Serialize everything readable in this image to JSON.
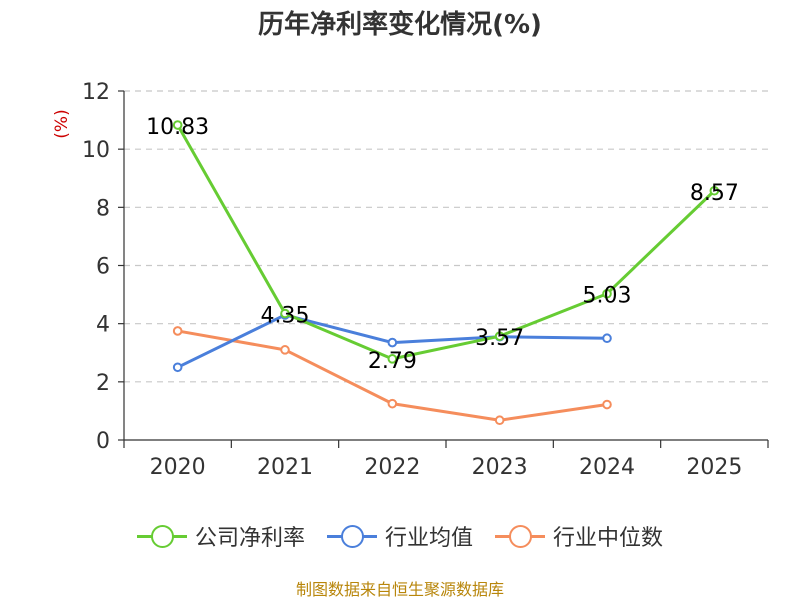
{
  "chart_data": {
    "type": "line",
    "title": "历年净利率变化情况(%)",
    "ylabel": "(%)",
    "xlabel": "",
    "ylim": [
      0,
      12
    ],
    "yticks": [
      0,
      2,
      4,
      6,
      8,
      10,
      12
    ],
    "grid": true,
    "legend_position": "bottom",
    "categories": [
      "2020",
      "2021",
      "2022",
      "2023",
      "2024",
      "2025"
    ],
    "series": [
      {
        "name": "公司净利率",
        "color": "#66cc33",
        "values": [
          10.83,
          4.35,
          2.79,
          3.57,
          5.03,
          8.57
        ],
        "labels": [
          "10.83",
          "4.35",
          "2.79",
          "3.57",
          "5.03",
          "8.57"
        ]
      },
      {
        "name": "行业均值",
        "color": "#4a7fdb",
        "values": [
          2.5,
          4.3,
          3.35,
          3.55,
          3.5,
          null
        ],
        "labels": []
      },
      {
        "name": "行业中位数",
        "color": "#f58d5c",
        "values": [
          3.75,
          3.1,
          1.25,
          0.68,
          1.22,
          null
        ],
        "labels": []
      }
    ]
  },
  "footer": {
    "source": "制图数据来自恒生聚源数据库"
  }
}
